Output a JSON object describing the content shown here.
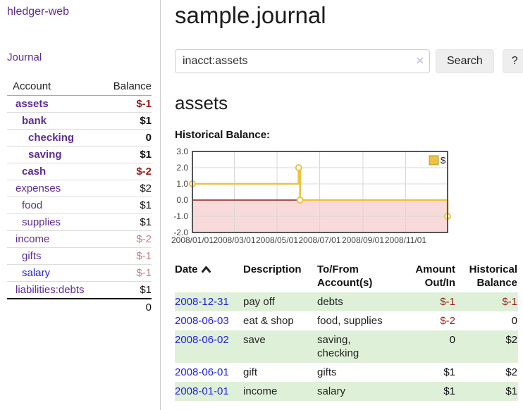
{
  "app": {
    "title": "hledger-web"
  },
  "sidebar": {
    "journal_link": "Journal",
    "accounts": {
      "header_account": "Account",
      "header_balance": "Balance",
      "rows": [
        {
          "name": "assets",
          "balance": "$-1",
          "depth": 1,
          "bold": true,
          "link": "purple",
          "balance_style": "negative"
        },
        {
          "name": "bank",
          "balance": "$1",
          "depth": 2,
          "bold": true,
          "link": "purple",
          "balance_style": "normal"
        },
        {
          "name": "checking",
          "balance": "0",
          "depth": 3,
          "bold": true,
          "link": "purple",
          "balance_style": "normal"
        },
        {
          "name": "saving",
          "balance": "$1",
          "depth": 3,
          "bold": true,
          "link": "purple",
          "balance_style": "normal"
        },
        {
          "name": "cash",
          "balance": "$-2",
          "depth": 2,
          "bold": true,
          "link": "purple",
          "balance_style": "negative"
        },
        {
          "name": "expenses",
          "balance": "$2",
          "depth": 1,
          "bold": false,
          "link": "purple",
          "balance_style": "normal"
        },
        {
          "name": "food",
          "balance": "$1",
          "depth": 2,
          "bold": false,
          "link": "purple",
          "balance_style": "normal"
        },
        {
          "name": "supplies",
          "balance": "$1",
          "depth": 2,
          "bold": false,
          "link": "purple",
          "balance_style": "normal"
        },
        {
          "name": "income",
          "balance": "$-2",
          "depth": 1,
          "bold": false,
          "link": "purple",
          "balance_style": "negative-dim"
        },
        {
          "name": "gifts",
          "balance": "$-1",
          "depth": 2,
          "bold": false,
          "link": "purple",
          "balance_style": "negative-dim"
        },
        {
          "name": "salary",
          "balance": "$-1",
          "depth": 2,
          "bold": false,
          "link": "blue",
          "balance_style": "negative-dim"
        },
        {
          "name": "liabilities:debts",
          "balance": "$1",
          "depth": 1,
          "bold": false,
          "link": "purple",
          "balance_style": "normal"
        }
      ],
      "total": "0"
    }
  },
  "main": {
    "title": "sample.journal",
    "search": {
      "value": "inacct:assets",
      "clear_icon": "×",
      "button_label": "Search",
      "help_label": "?"
    },
    "account_heading": "assets",
    "chart_label": "Historical Balance:"
  },
  "chart_data": {
    "type": "line",
    "title": "Historical Balance:",
    "step": true,
    "series": [
      {
        "name": "$",
        "color": "#edc240",
        "points": [
          [
            "2008-01-01",
            1
          ],
          [
            "2008-06-01",
            2
          ],
          [
            "2008-06-03",
            0
          ],
          [
            "2008-12-31",
            -1
          ]
        ]
      }
    ],
    "x_range": [
      "2008-01-01",
      "2008-12-31"
    ],
    "ylim": [
      -2,
      3
    ],
    "y_ticks": [
      "3.0",
      "2.0",
      "1.0",
      "0.0",
      "-1.0",
      "-2.0"
    ],
    "x_ticks": [
      "2008/01/01",
      "2008/03/01",
      "2008/05/01",
      "2008/07/01",
      "2008/09/01",
      "2008/11/01"
    ],
    "grid": true,
    "legend_position": "top-right",
    "negative_region_color": "#f9dada",
    "zero_line_color": "#8f1f1f",
    "grid_color": "#d8d8d8",
    "border_color": "#565656"
  },
  "register_table": {
    "headers": {
      "date": "Date",
      "description": "Description",
      "accounts": "To/From Account(s)",
      "amount": "Amount Out/In",
      "balance": "Historical Balance"
    },
    "rows": [
      {
        "date": "2008-12-31",
        "description": "pay off",
        "accounts": "debts",
        "amount": "$-1",
        "amount_style": "negative",
        "balance": "$-1",
        "balance_style": "negative"
      },
      {
        "date": "2008-06-03",
        "description": "eat & shop",
        "accounts": "food, supplies",
        "amount": "$-2",
        "amount_style": "negative",
        "balance": "0",
        "balance_style": "normal"
      },
      {
        "date": "2008-06-02",
        "description": "save",
        "accounts": "saving, checking",
        "amount": "0",
        "amount_style": "normal",
        "balance": "$2",
        "balance_style": "normal"
      },
      {
        "date": "2008-06-01",
        "description": "gift",
        "accounts": "gifts",
        "amount": "$1",
        "amount_style": "normal",
        "balance": "$2",
        "balance_style": "normal"
      },
      {
        "date": "2008-01-01",
        "description": "income",
        "accounts": "salary",
        "amount": "$1",
        "amount_style": "normal",
        "balance": "$1",
        "balance_style": "normal"
      }
    ]
  }
}
